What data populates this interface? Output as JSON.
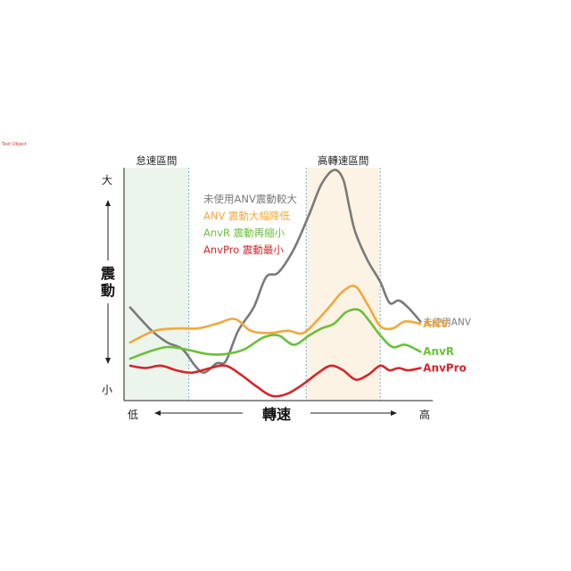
{
  "corner_tag": "Text Object",
  "chart_data": {
    "type": "line",
    "title": "",
    "xlabel": "轉速",
    "ylabel": "震動",
    "x_low_label": "低",
    "x_high_label": "高",
    "y_high_label": "大",
    "y_low_label": "小",
    "x_range": [
      0,
      100
    ],
    "y_range": [
      0,
      100
    ],
    "grid": false,
    "bands": [
      {
        "label": "怠速區間",
        "x_start": 0,
        "x_end": 21,
        "color": "#ecf5ec"
      },
      {
        "label": "高轉速區間",
        "x_start": 59,
        "x_end": 83,
        "color": "#fdf3e4"
      }
    ],
    "legend": {
      "placement": "top-center",
      "entries": [
        {
          "text": "未使用ANV震動較大",
          "color": "#7a7a7a"
        },
        {
          "text": "ANV 震動大幅降低",
          "color": "#f0a93e"
        },
        {
          "text": "AnvR 震動再縮小",
          "color": "#6cbf3c"
        },
        {
          "text": "AnvPro 震動最小",
          "color": "#d4262b"
        }
      ]
    },
    "series": [
      {
        "name": "未使用ANV",
        "color": "#7a7a7a",
        "end_label_bold": false,
        "x": [
          2,
          9,
          14,
          19,
          23,
          26,
          30,
          33,
          37,
          42,
          46,
          50,
          55,
          60,
          64,
          68,
          71,
          73,
          75,
          79,
          83,
          86,
          89,
          92,
          96
        ],
        "y": [
          40,
          30,
          25,
          22,
          15,
          12,
          16,
          17,
          30,
          40,
          53,
          55,
          65,
          80,
          93,
          99,
          95,
          83,
          72,
          60,
          51,
          42,
          43,
          40,
          34
        ]
      },
      {
        "name": "ANV",
        "color": "#f0a93e",
        "end_label_bold": true,
        "x": [
          2,
          10,
          18,
          24,
          30,
          36,
          41,
          47,
          53,
          58,
          63,
          67,
          71,
          75,
          79,
          83,
          87,
          91,
          96
        ],
        "y": [
          25,
          30,
          31,
          31,
          33,
          35,
          30,
          29,
          30,
          29,
          35,
          41,
          47,
          49,
          41,
          32,
          31,
          34,
          33
        ]
      },
      {
        "name": "AnvR",
        "color": "#6cbf3c",
        "end_label_bold": true,
        "x": [
          2,
          8,
          14,
          20,
          27,
          33,
          39,
          45,
          50,
          55,
          60,
          64,
          68,
          72,
          76,
          79,
          83,
          87,
          91,
          96
        ],
        "y": [
          18,
          21,
          23,
          22,
          20,
          20,
          22,
          27,
          28,
          24,
          28,
          31,
          33,
          38,
          39,
          35,
          28,
          23,
          24,
          21
        ]
      },
      {
        "name": "AnvPro",
        "color": "#d4262b",
        "end_label_bold": true,
        "x": [
          2,
          7,
          12,
          17,
          22,
          28,
          33,
          38,
          43,
          48,
          53,
          58,
          63,
          67,
          71,
          75,
          79,
          83,
          86,
          89,
          92,
          96
        ],
        "y": [
          15,
          14,
          15,
          13,
          12,
          14,
          15,
          11,
          6,
          2,
          3,
          7,
          12,
          15,
          13,
          9,
          11,
          15,
          13,
          14,
          13,
          14
        ]
      }
    ]
  }
}
